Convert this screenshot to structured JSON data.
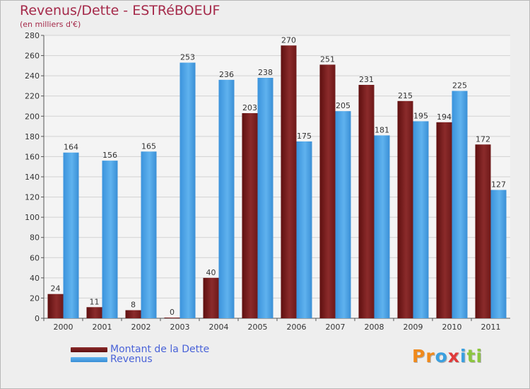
{
  "header": {
    "title": "Revenus/Dette - ESTRéBOEUF",
    "subtitle": "(en milliers d'€)"
  },
  "legend": {
    "dette_label": "Montant de la Dette",
    "revenus_label": "Revenus"
  },
  "brand": {
    "letters": [
      "P",
      "r",
      "o",
      "x",
      "i",
      "t",
      "i"
    ],
    "colors": [
      "#f08a1c",
      "#f08a1c",
      "#3aa0e0",
      "#e03a3a",
      "#3aa0e0",
      "#8cc63f",
      "#8cc63f"
    ]
  },
  "colors": {
    "dette": "#7a1c1c",
    "revenus": "#4aa3e8",
    "title": "#a52a4a",
    "legend_text": "#4a63d8"
  },
  "chart_data": {
    "type": "bar",
    "title": "Revenus/Dette - ESTRéBOEUF",
    "ylabel": "(en milliers d'€)",
    "xlabel": "",
    "categories": [
      "2000",
      "2001",
      "2002",
      "2003",
      "2004",
      "2005",
      "2006",
      "2007",
      "2008",
      "2009",
      "2010",
      "2011"
    ],
    "series": [
      {
        "name": "Montant de la Dette",
        "values": [
          24,
          11,
          8,
          0,
          40,
          203,
          270,
          251,
          231,
          215,
          194,
          172
        ]
      },
      {
        "name": "Revenus",
        "values": [
          164,
          156,
          165,
          253,
          236,
          238,
          175,
          205,
          181,
          195,
          225,
          127
        ]
      }
    ],
    "ylim": [
      0,
      280
    ],
    "yticks": [
      0,
      20,
      40,
      60,
      80,
      100,
      120,
      140,
      160,
      180,
      200,
      220,
      240,
      260,
      280
    ],
    "grid": true,
    "legend_position": "bottom-left"
  }
}
